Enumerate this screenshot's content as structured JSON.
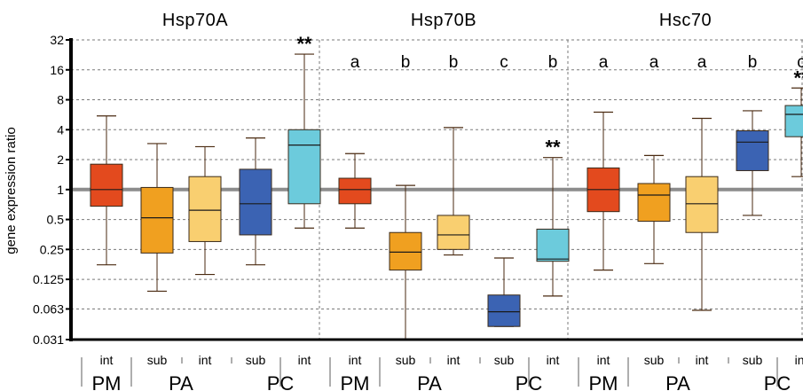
{
  "chart_data": {
    "type": "box",
    "ylabel": "gene  expression ratio",
    "yscale": "log2",
    "ylim": [
      0.031,
      32
    ],
    "yticks": [
      {
        "value": 32,
        "label": "32"
      },
      {
        "value": 16,
        "label": "16"
      },
      {
        "value": 8,
        "label": "8"
      },
      {
        "value": 4,
        "label": "4"
      },
      {
        "value": 2,
        "label": "2"
      },
      {
        "value": 1,
        "label": "1"
      },
      {
        "value": 0.5,
        "label": "0.5"
      },
      {
        "value": 0.25,
        "label": "0.25"
      },
      {
        "value": 0.125,
        "label": "0.125"
      },
      {
        "value": 0.063,
        "label": "0.063"
      },
      {
        "value": 0.031,
        "label": "0.031"
      }
    ],
    "reference_line": 1,
    "grid": "dashed horizontal",
    "colors": {
      "PM-int": "#e34a1e",
      "PA-sub": "#f0a020",
      "PA-int": "#f9cf70",
      "PC-sub": "#3b63b3",
      "PC-int": "#6ccbdc",
      "reference": "#8c8c8c"
    },
    "panels": [
      {
        "title": "Hsp70A",
        "boxes": [
          {
            "group": "PM",
            "sub": "int",
            "whisker_low": 0.175,
            "q1": 0.68,
            "median": 1.0,
            "q3": 1.8,
            "whisker_high": 5.5,
            "letter": "",
            "star": ""
          },
          {
            "group": "PA",
            "sub": "sub",
            "whisker_low": 0.095,
            "q1": 0.23,
            "median": 0.52,
            "q3": 1.05,
            "whisker_high": 2.9,
            "letter": "",
            "star": ""
          },
          {
            "group": "PA",
            "sub": "int",
            "whisker_low": 0.14,
            "q1": 0.3,
            "median": 0.62,
            "q3": 1.35,
            "whisker_high": 2.7,
            "letter": "",
            "star": ""
          },
          {
            "group": "PC",
            "sub": "sub",
            "whisker_low": 0.175,
            "q1": 0.35,
            "median": 0.72,
            "q3": 1.6,
            "whisker_high": 3.3,
            "letter": "",
            "star": ""
          },
          {
            "group": "PC",
            "sub": "int",
            "whisker_low": 0.41,
            "q1": 0.72,
            "median": 2.8,
            "q3": 4.0,
            "whisker_high": 23.0,
            "letter": "",
            "star": "**"
          }
        ]
      },
      {
        "title": "Hsp70B",
        "boxes": [
          {
            "group": "PM",
            "sub": "int",
            "whisker_low": 0.41,
            "q1": 0.72,
            "median": 1.0,
            "q3": 1.3,
            "whisker_high": 2.3,
            "letter": "a",
            "star": ""
          },
          {
            "group": "PA",
            "sub": "sub",
            "whisker_low": 0.031,
            "q1": 0.155,
            "median": 0.235,
            "q3": 0.37,
            "whisker_high": 1.1,
            "letter": "b",
            "star": ""
          },
          {
            "group": "PA",
            "sub": "int",
            "whisker_low": 0.22,
            "q1": 0.25,
            "median": 0.35,
            "q3": 0.55,
            "whisker_high": 4.2,
            "letter": "b",
            "star": ""
          },
          {
            "group": "PC",
            "sub": "sub",
            "whisker_low": 0.042,
            "q1": 0.042,
            "median": 0.059,
            "q3": 0.087,
            "whisker_high": 0.205,
            "letter": "c",
            "star": ""
          },
          {
            "group": "PC",
            "sub": "int",
            "whisker_low": 0.085,
            "q1": 0.19,
            "median": 0.2,
            "q3": 0.4,
            "whisker_high": 2.1,
            "letter": "b",
            "star": "**"
          }
        ]
      },
      {
        "title": "Hsc70",
        "boxes": [
          {
            "group": "PM",
            "sub": "int",
            "whisker_low": 0.155,
            "q1": 0.6,
            "median": 1.0,
            "q3": 1.65,
            "whisker_high": 6.0,
            "letter": "a",
            "star": ""
          },
          {
            "group": "PA",
            "sub": "sub",
            "whisker_low": 0.18,
            "q1": 0.48,
            "median": 0.88,
            "q3": 1.15,
            "whisker_high": 2.2,
            "letter": "a",
            "star": ""
          },
          {
            "group": "PA",
            "sub": "int",
            "whisker_low": 0.061,
            "q1": 0.37,
            "median": 0.72,
            "q3": 1.35,
            "whisker_high": 5.2,
            "letter": "a",
            "star": ""
          },
          {
            "group": "PC",
            "sub": "sub",
            "whisker_low": 0.55,
            "q1": 1.55,
            "median": 3.0,
            "q3": 3.9,
            "whisker_high": 6.2,
            "letter": "b",
            "star": ""
          },
          {
            "group": "PC",
            "sub": "int",
            "whisker_low": 1.35,
            "q1": 3.4,
            "median": 5.7,
            "q3": 7.0,
            "whisker_high": 10.5,
            "letter": "c",
            "star": "**"
          }
        ]
      }
    ]
  }
}
